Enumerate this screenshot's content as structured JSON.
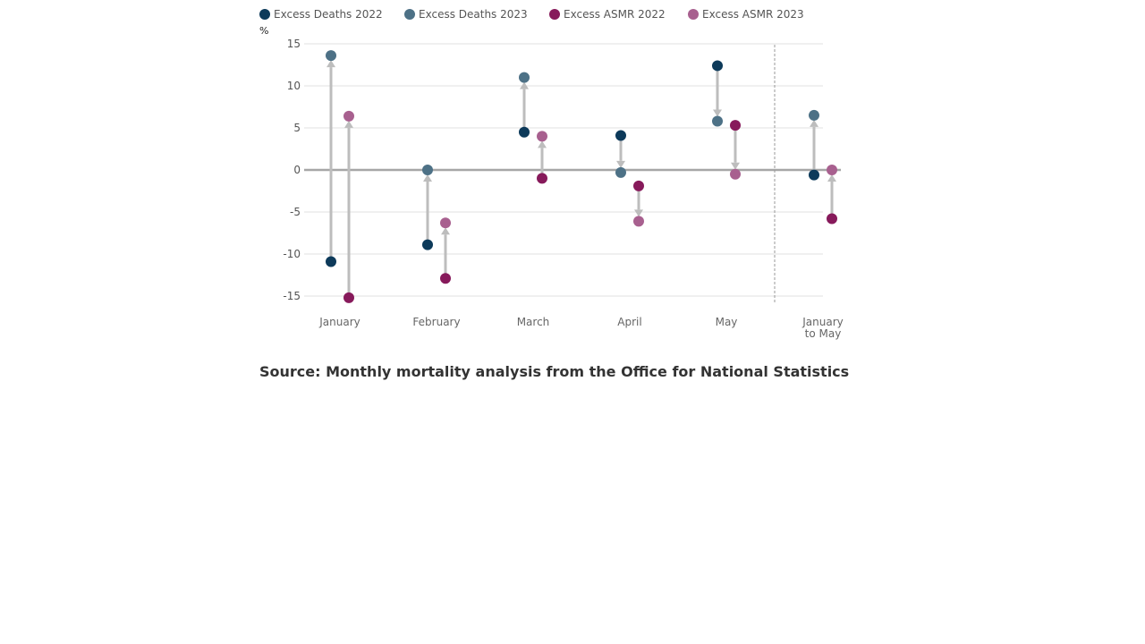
{
  "colors": {
    "deaths_2022": "#0d3a5a",
    "deaths_2023": "#4d7186",
    "asmr_2022": "#871a5b",
    "asmr_2023": "#a8608f",
    "arrow": "#bdbdbd",
    "zero_line": "#a6a6a6",
    "grid": "#e0e0e0",
    "divider": "#999999"
  },
  "legend": [
    {
      "label": "Excess Deaths 2022",
      "color_key": "deaths_2022"
    },
    {
      "label": "Excess Deaths 2023",
      "color_key": "deaths_2023"
    },
    {
      "label": "Excess ASMR 2022",
      "color_key": "asmr_2022"
    },
    {
      "label": "Excess ASMR 2023",
      "color_key": "asmr_2023"
    }
  ],
  "source": "Source: Monthly mortality analysis from the Office for National Statistics",
  "chart_data": {
    "type": "scatter",
    "title": "",
    "xlabel": "",
    "ylabel": "%",
    "ylim": [
      -15,
      15
    ],
    "yticks": [
      15,
      10,
      5,
      0,
      -5,
      -10,
      -15
    ],
    "ytick_labels": [
      "15",
      "10",
      "5",
      "0",
      "-5",
      "-10",
      "-15"
    ],
    "grid": true,
    "legend_position": "top",
    "categories": [
      [
        "January"
      ],
      [
        "February"
      ],
      [
        "March"
      ],
      [
        "April"
      ],
      [
        "May"
      ],
      [
        "January",
        "to May"
      ]
    ],
    "separator_before_category": 5,
    "series": [
      {
        "name": "Excess Deaths 2022",
        "color_key": "deaths_2022",
        "values": [
          -10.9,
          -8.9,
          4.5,
          4.1,
          12.4,
          -0.6
        ]
      },
      {
        "name": "Excess Deaths 2023",
        "color_key": "deaths_2023",
        "values": [
          13.6,
          0.0,
          11.0,
          -0.3,
          5.8,
          6.5
        ]
      },
      {
        "name": "Excess ASMR 2022",
        "color_key": "asmr_2022",
        "values": [
          -15.2,
          -12.9,
          -1.0,
          -1.9,
          5.3,
          -5.8
        ]
      },
      {
        "name": "Excess ASMR 2023",
        "color_key": "asmr_2023",
        "values": [
          6.4,
          -6.3,
          4.0,
          -6.1,
          -0.5,
          0.0
        ]
      }
    ],
    "pairs": [
      {
        "from": "Excess Deaths 2022",
        "to": "Excess Deaths 2023"
      },
      {
        "from": "Excess ASMR 2022",
        "to": "Excess ASMR 2023"
      }
    ]
  }
}
